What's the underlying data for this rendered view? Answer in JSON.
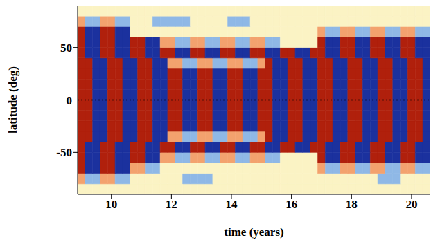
{
  "chart_data": {
    "type": "heatmap",
    "x_label": "time (years)",
    "y_label": "latitude (deg)",
    "xlim": [
      8.875,
      20.625
    ],
    "xticks": [
      10,
      12,
      14,
      16,
      18,
      20
    ],
    "ylim": [
      -90,
      90
    ],
    "yticks": [
      -50,
      0,
      50
    ],
    "reference_lines": [
      0
    ],
    "zlim": [
      -1,
      1
    ],
    "cells": {
      "x": [
        9.0,
        9.25,
        9.5,
        9.75,
        10.0,
        10.25,
        10.5,
        10.75,
        11.0,
        11.25,
        11.5,
        11.75,
        12.0,
        12.25,
        12.5,
        12.75,
        13.0,
        13.25,
        13.5,
        13.75,
        14.0,
        14.25,
        14.5,
        14.75,
        15.0,
        15.25,
        15.5,
        15.75,
        16.0,
        16.25,
        16.5,
        16.75,
        17.0,
        17.25,
        17.5,
        17.75,
        18.0,
        18.25,
        18.5,
        18.75,
        19.0,
        19.25,
        19.5,
        19.75,
        20.0,
        20.25,
        20.5
      ],
      "y": [
        -85,
        -75,
        -65,
        -55,
        -45,
        -35,
        -25,
        -15,
        -5,
        5,
        15,
        25,
        35,
        45,
        55,
        65,
        75,
        85
      ],
      "z": [
        [
          0,
          0,
          0,
          0,
          0,
          0,
          0,
          0,
          0,
          0,
          0,
          0,
          0,
          0,
          0,
          0,
          0,
          0,
          0,
          0,
          0,
          0,
          0,
          0,
          0,
          0,
          0,
          0,
          0,
          0,
          0,
          0,
          0,
          0,
          0,
          0,
          0,
          0,
          0,
          0,
          0,
          0,
          0,
          0,
          0,
          0,
          0
        ],
        [
          0.5,
          -0.5,
          -0.5,
          0.5,
          0.5,
          -0.5,
          -0.5,
          0,
          0,
          0,
          0,
          0,
          0,
          0,
          -0.5,
          -0.5,
          -0.5,
          -0.5,
          0,
          0,
          0,
          0,
          0,
          0,
          0,
          0,
          0,
          0,
          0,
          0,
          0,
          0,
          0,
          0,
          0,
          0,
          0,
          0,
          0,
          0,
          -0.5,
          -0.5,
          -0.5,
          0,
          0,
          0,
          0
        ],
        [
          1,
          -1,
          -1,
          1,
          1,
          -1,
          -1,
          0.5,
          0.5,
          -0.5,
          -0.5,
          0,
          0,
          0,
          0,
          0,
          0,
          0,
          0,
          0,
          0,
          0,
          0,
          0,
          0,
          0,
          0,
          0,
          0,
          0,
          0,
          0,
          0.5,
          -0.5,
          -0.5,
          0.5,
          0.5,
          -0.5,
          -0.5,
          0.5,
          0.5,
          -0.5,
          -0.5,
          0.5,
          0.5,
          -0.5,
          -0.5
        ],
        [
          1,
          -1,
          -1,
          1,
          1,
          -1,
          -1,
          1,
          1,
          -1,
          -1,
          0.5,
          0.5,
          -0.5,
          -0.5,
          0.5,
          0.5,
          -0.5,
          -0.5,
          0.5,
          0.5,
          -0.5,
          -0.5,
          0.5,
          0.5,
          -0.5,
          -0.5,
          0,
          0,
          0,
          0,
          0,
          1,
          -1,
          -1,
          1,
          1,
          -1,
          -1,
          1,
          1,
          -1,
          -1,
          1,
          1,
          -1,
          -1
        ],
        [
          1,
          -1,
          -1,
          1,
          1,
          -1,
          -1,
          1,
          1,
          -1,
          -1,
          1,
          1,
          -1,
          -1,
          1,
          1,
          -1,
          -1,
          1,
          1,
          -1,
          -1,
          1,
          1,
          -1,
          -1,
          1,
          1,
          -1,
          -1,
          1,
          1,
          -1,
          -1,
          1,
          1,
          -1,
          -1,
          1,
          1,
          -1,
          -1,
          1,
          1,
          -1,
          -1
        ],
        [
          1,
          1,
          -1,
          -1,
          1,
          1,
          -1,
          -1,
          1,
          1,
          -1,
          -1,
          0.5,
          0.5,
          -0.5,
          -0.5,
          0.5,
          0.5,
          -0.5,
          -0.5,
          0.5,
          0.5,
          -0.5,
          -0.5,
          0.5,
          1,
          -1,
          -1,
          1,
          1,
          -1,
          -1,
          1,
          1,
          -1,
          -1,
          1,
          1,
          -1,
          -1,
          1,
          1,
          -1,
          -1,
          1,
          1,
          -1
        ],
        [
          1,
          1,
          -1,
          -1,
          1,
          1,
          -1,
          -1,
          1,
          1,
          -1,
          -1,
          1,
          1,
          -1,
          -1,
          1,
          1,
          -1,
          -1,
          1,
          1,
          -1,
          -1,
          1,
          1,
          -1,
          -1,
          1,
          1,
          -1,
          -1,
          1,
          1,
          -1,
          -1,
          1,
          1,
          -1,
          -1,
          1,
          1,
          -1,
          -1,
          1,
          1,
          -1
        ],
        [
          1,
          1,
          -1,
          -1,
          1,
          1,
          -1,
          -1,
          1,
          1,
          -1,
          -1,
          1,
          1,
          -1,
          -1,
          1,
          1,
          -1,
          -1,
          1,
          1,
          -1,
          -1,
          1,
          1,
          -1,
          -1,
          1,
          1,
          -1,
          -1,
          1,
          1,
          -1,
          -1,
          1,
          1,
          -1,
          -1,
          1,
          1,
          -1,
          -1,
          1,
          1,
          -1
        ],
        [
          1,
          1,
          -1,
          -1,
          1,
          1,
          -1,
          -1,
          1,
          1,
          -1,
          -1,
          1,
          1,
          -1,
          -1,
          1,
          1,
          -1,
          -1,
          1,
          1,
          -1,
          -1,
          1,
          1,
          -1,
          -1,
          1,
          1,
          -1,
          -1,
          1,
          1,
          -1,
          -1,
          1,
          1,
          -1,
          -1,
          1,
          1,
          -1,
          -1,
          1,
          1,
          -1
        ],
        [
          1,
          1,
          -1,
          -1,
          1,
          1,
          -1,
          -1,
          1,
          1,
          -1,
          -1,
          1,
          1,
          -1,
          -1,
          1,
          1,
          -1,
          -1,
          1,
          1,
          -1,
          -1,
          1,
          1,
          -1,
          -1,
          1,
          1,
          -1,
          -1,
          1,
          1,
          -1,
          -1,
          1,
          1,
          -1,
          -1,
          1,
          1,
          -1,
          -1,
          1,
          1,
          -1
        ],
        [
          1,
          1,
          -1,
          -1,
          1,
          1,
          -1,
          -1,
          1,
          1,
          -1,
          -1,
          1,
          1,
          -1,
          -1,
          1,
          1,
          -1,
          -1,
          1,
          1,
          -1,
          -1,
          1,
          1,
          -1,
          -1,
          1,
          1,
          -1,
          -1,
          1,
          1,
          -1,
          -1,
          1,
          1,
          -1,
          -1,
          1,
          1,
          -1,
          -1,
          1,
          1,
          -1
        ],
        [
          1,
          1,
          -1,
          -1,
          1,
          1,
          -1,
          -1,
          1,
          1,
          -1,
          -1,
          1,
          1,
          -1,
          -1,
          1,
          1,
          -1,
          -1,
          1,
          1,
          -1,
          -1,
          1,
          1,
          -1,
          -1,
          1,
          1,
          -1,
          -1,
          1,
          1,
          -1,
          -1,
          1,
          1,
          -1,
          -1,
          1,
          1,
          -1,
          -1,
          1,
          1,
          -1
        ],
        [
          1,
          1,
          -1,
          -1,
          1,
          1,
          -1,
          -1,
          1,
          1,
          -1,
          -1,
          0.5,
          0.5,
          -0.5,
          -0.5,
          0.5,
          0.5,
          -0.5,
          -0.5,
          0.5,
          0.5,
          -0.5,
          -0.5,
          0.5,
          1,
          -1,
          -1,
          1,
          1,
          -1,
          -1,
          1,
          1,
          -1,
          -1,
          1,
          1,
          -1,
          -1,
          1,
          1,
          -1,
          -1,
          1,
          1,
          -1
        ],
        [
          1,
          -1,
          -1,
          1,
          1,
          -1,
          -1,
          1,
          1,
          -1,
          -1,
          1,
          1,
          -1,
          -1,
          1,
          1,
          -1,
          -1,
          1,
          1,
          -1,
          -1,
          1,
          1,
          -1,
          -1,
          1,
          1,
          -1,
          -1,
          1,
          1,
          -1,
          -1,
          1,
          1,
          -1,
          -1,
          1,
          1,
          -1,
          -1,
          1,
          1,
          -1,
          -1
        ],
        [
          1,
          -1,
          -1,
          1,
          1,
          -1,
          -1,
          1,
          1,
          -1,
          -1,
          0.5,
          0.5,
          -0.5,
          -0.5,
          0.5,
          0.5,
          -0.5,
          -0.5,
          0.5,
          0.5,
          -0.5,
          -0.5,
          0.5,
          0.5,
          -0.5,
          -0.5,
          0,
          0,
          0,
          0,
          0,
          1,
          -1,
          -1,
          1,
          1,
          -1,
          -1,
          1,
          1,
          -1,
          -1,
          1,
          1,
          -1,
          -1
        ],
        [
          1,
          -1,
          -1,
          1,
          1,
          -1,
          -1,
          0,
          0,
          0,
          0,
          0,
          0,
          0,
          0,
          0,
          0,
          0,
          0,
          0,
          0,
          0,
          0,
          0,
          0,
          0,
          0,
          0,
          0,
          0,
          0,
          0,
          0.5,
          -0.5,
          -0.5,
          0.5,
          0.5,
          -0.5,
          -0.5,
          0.5,
          0.5,
          -0.5,
          -0.5,
          0.5,
          0.5,
          -0.5,
          -0.5
        ],
        [
          0.5,
          -0.5,
          -0.5,
          0.5,
          0.5,
          -0.5,
          -0.5,
          0,
          0,
          0,
          -0.5,
          -0.5,
          -0.5,
          -0.5,
          -0.5,
          0,
          0,
          0,
          0,
          0,
          -0.5,
          -0.5,
          -0.5,
          0,
          0,
          0,
          0,
          0,
          0,
          0,
          0,
          0,
          0,
          0,
          0,
          0,
          0,
          0,
          0,
          0,
          0,
          0,
          0,
          0,
          0,
          0,
          0
        ],
        [
          0,
          0,
          0,
          0,
          0,
          0,
          0,
          0,
          0,
          0,
          0,
          0,
          0,
          0,
          0,
          0,
          0,
          0,
          0,
          0,
          0,
          0,
          0,
          0,
          0,
          0,
          0,
          0,
          0,
          0,
          0,
          0,
          0,
          0,
          0,
          0,
          0,
          0,
          0,
          0,
          0,
          0,
          0,
          0,
          0,
          0,
          0
        ]
      ]
    }
  }
}
